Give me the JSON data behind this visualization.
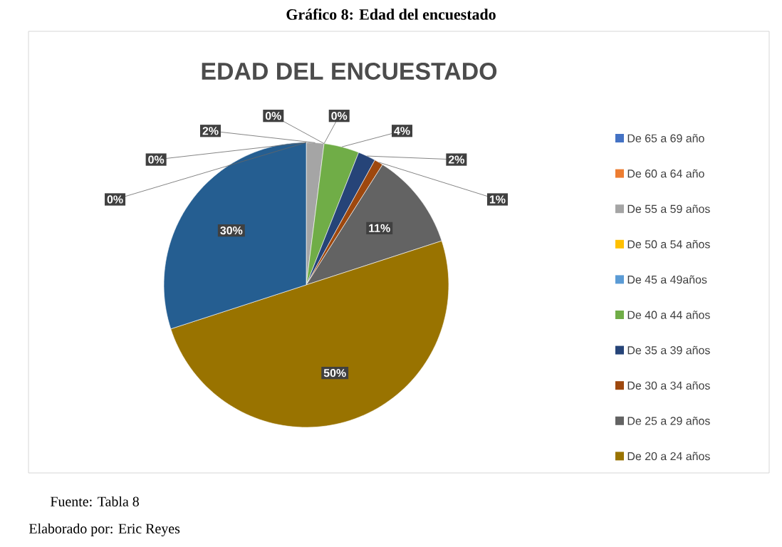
{
  "chart_data": {
    "type": "pie",
    "title": "Gráfico 8:  Edad del encuestado",
    "subtitle": "EDAD DEL ENCUESTADO",
    "categories": [
      "De 65 a 69 año",
      "De 60 a 64 año",
      "De 55 a 59 años",
      "De 50 a 54 años",
      "De 45 a 49años",
      "De 40 a 44 años",
      "De 35 a 39 años",
      "De 30 a 34 años",
      "De 25 a 29 años",
      "De 20 a 24 años",
      null
    ],
    "values": [
      0,
      0,
      2,
      0,
      0,
      4,
      2,
      1,
      11,
      50,
      30
    ],
    "colors": [
      "#4472c4",
      "#ed7d31",
      "#a5a5a5",
      "#ffc000",
      "#5b9bd5",
      "#70ad47",
      "#264478",
      "#9e480e",
      "#636363",
      "#997300",
      "#255e91"
    ],
    "value_labels": [
      "0%",
      "0%",
      "2%",
      "0%",
      "0%",
      "4%",
      "2%",
      "1%",
      "11%",
      "50%",
      "30%"
    ],
    "legend": "right",
    "annotations": [
      "Fuente: Tabla 8",
      "Elaborado por: Eric Reyes"
    ]
  }
}
